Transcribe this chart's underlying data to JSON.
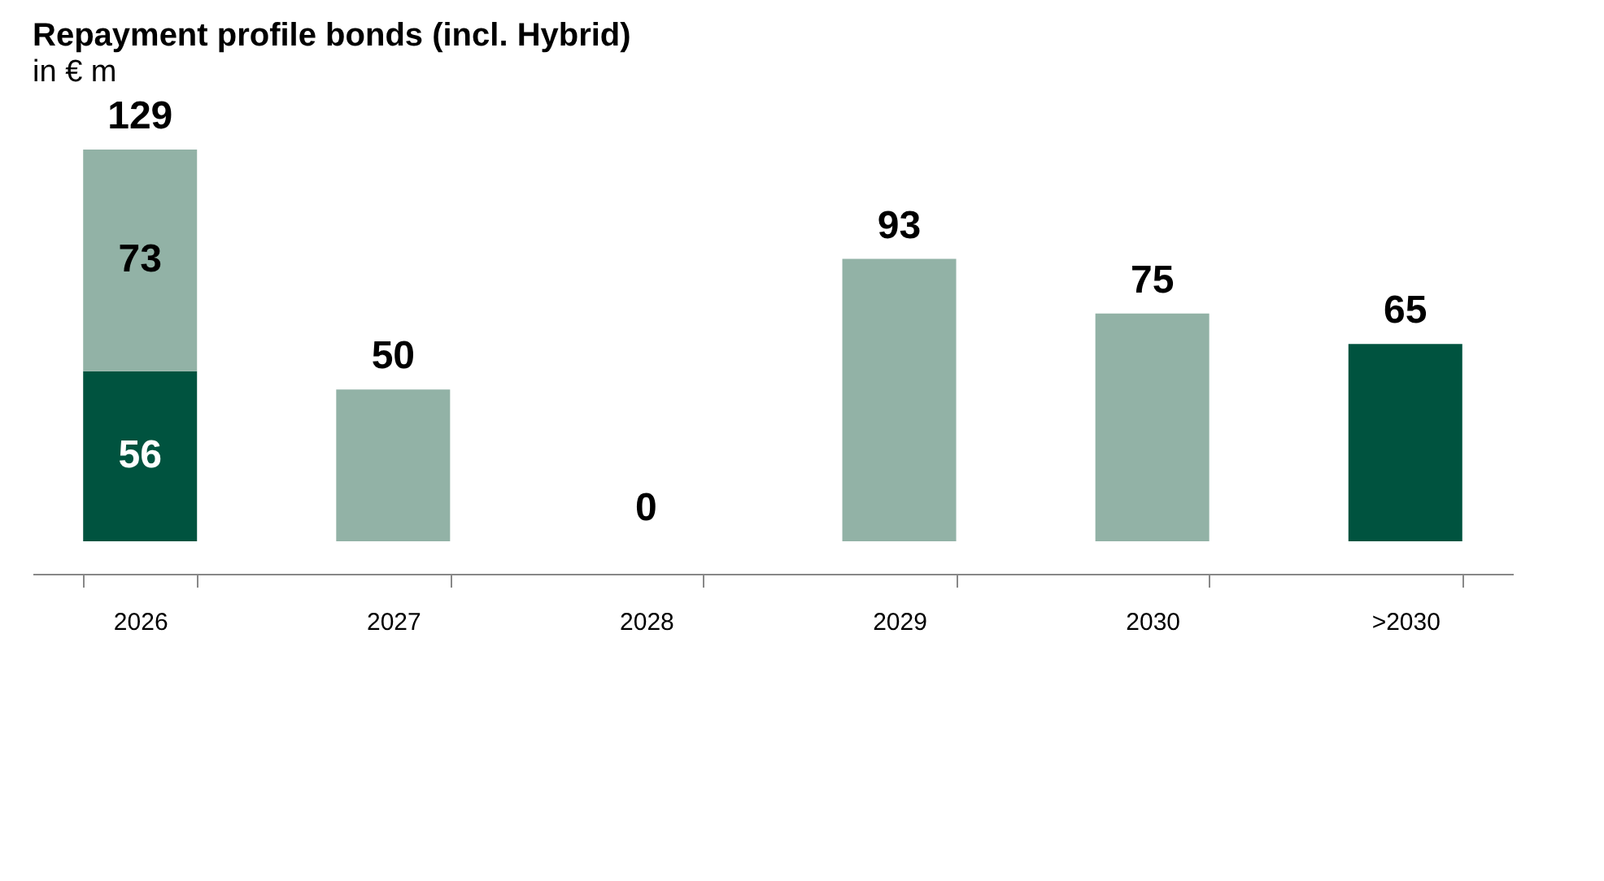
{
  "chart_data": {
    "type": "bar",
    "title": "Repayment profile bonds (incl. Hybrid)",
    "subtitle": "in € m",
    "categories": [
      "2026",
      "2027",
      "2028",
      "2029",
      "2030",
      ">2030"
    ],
    "stacked": true,
    "series": [
      {
        "color": "#00533f",
        "values": [
          56,
          null,
          null,
          null,
          null,
          65
        ]
      },
      {
        "color": "#92b2a6",
        "values": [
          73,
          50,
          0,
          93,
          75,
          null
        ]
      }
    ],
    "data_labels": true,
    "totals": [
      "129",
      null,
      null,
      null,
      null,
      null
    ],
    "grid": false,
    "tick_labels": "x"
  }
}
